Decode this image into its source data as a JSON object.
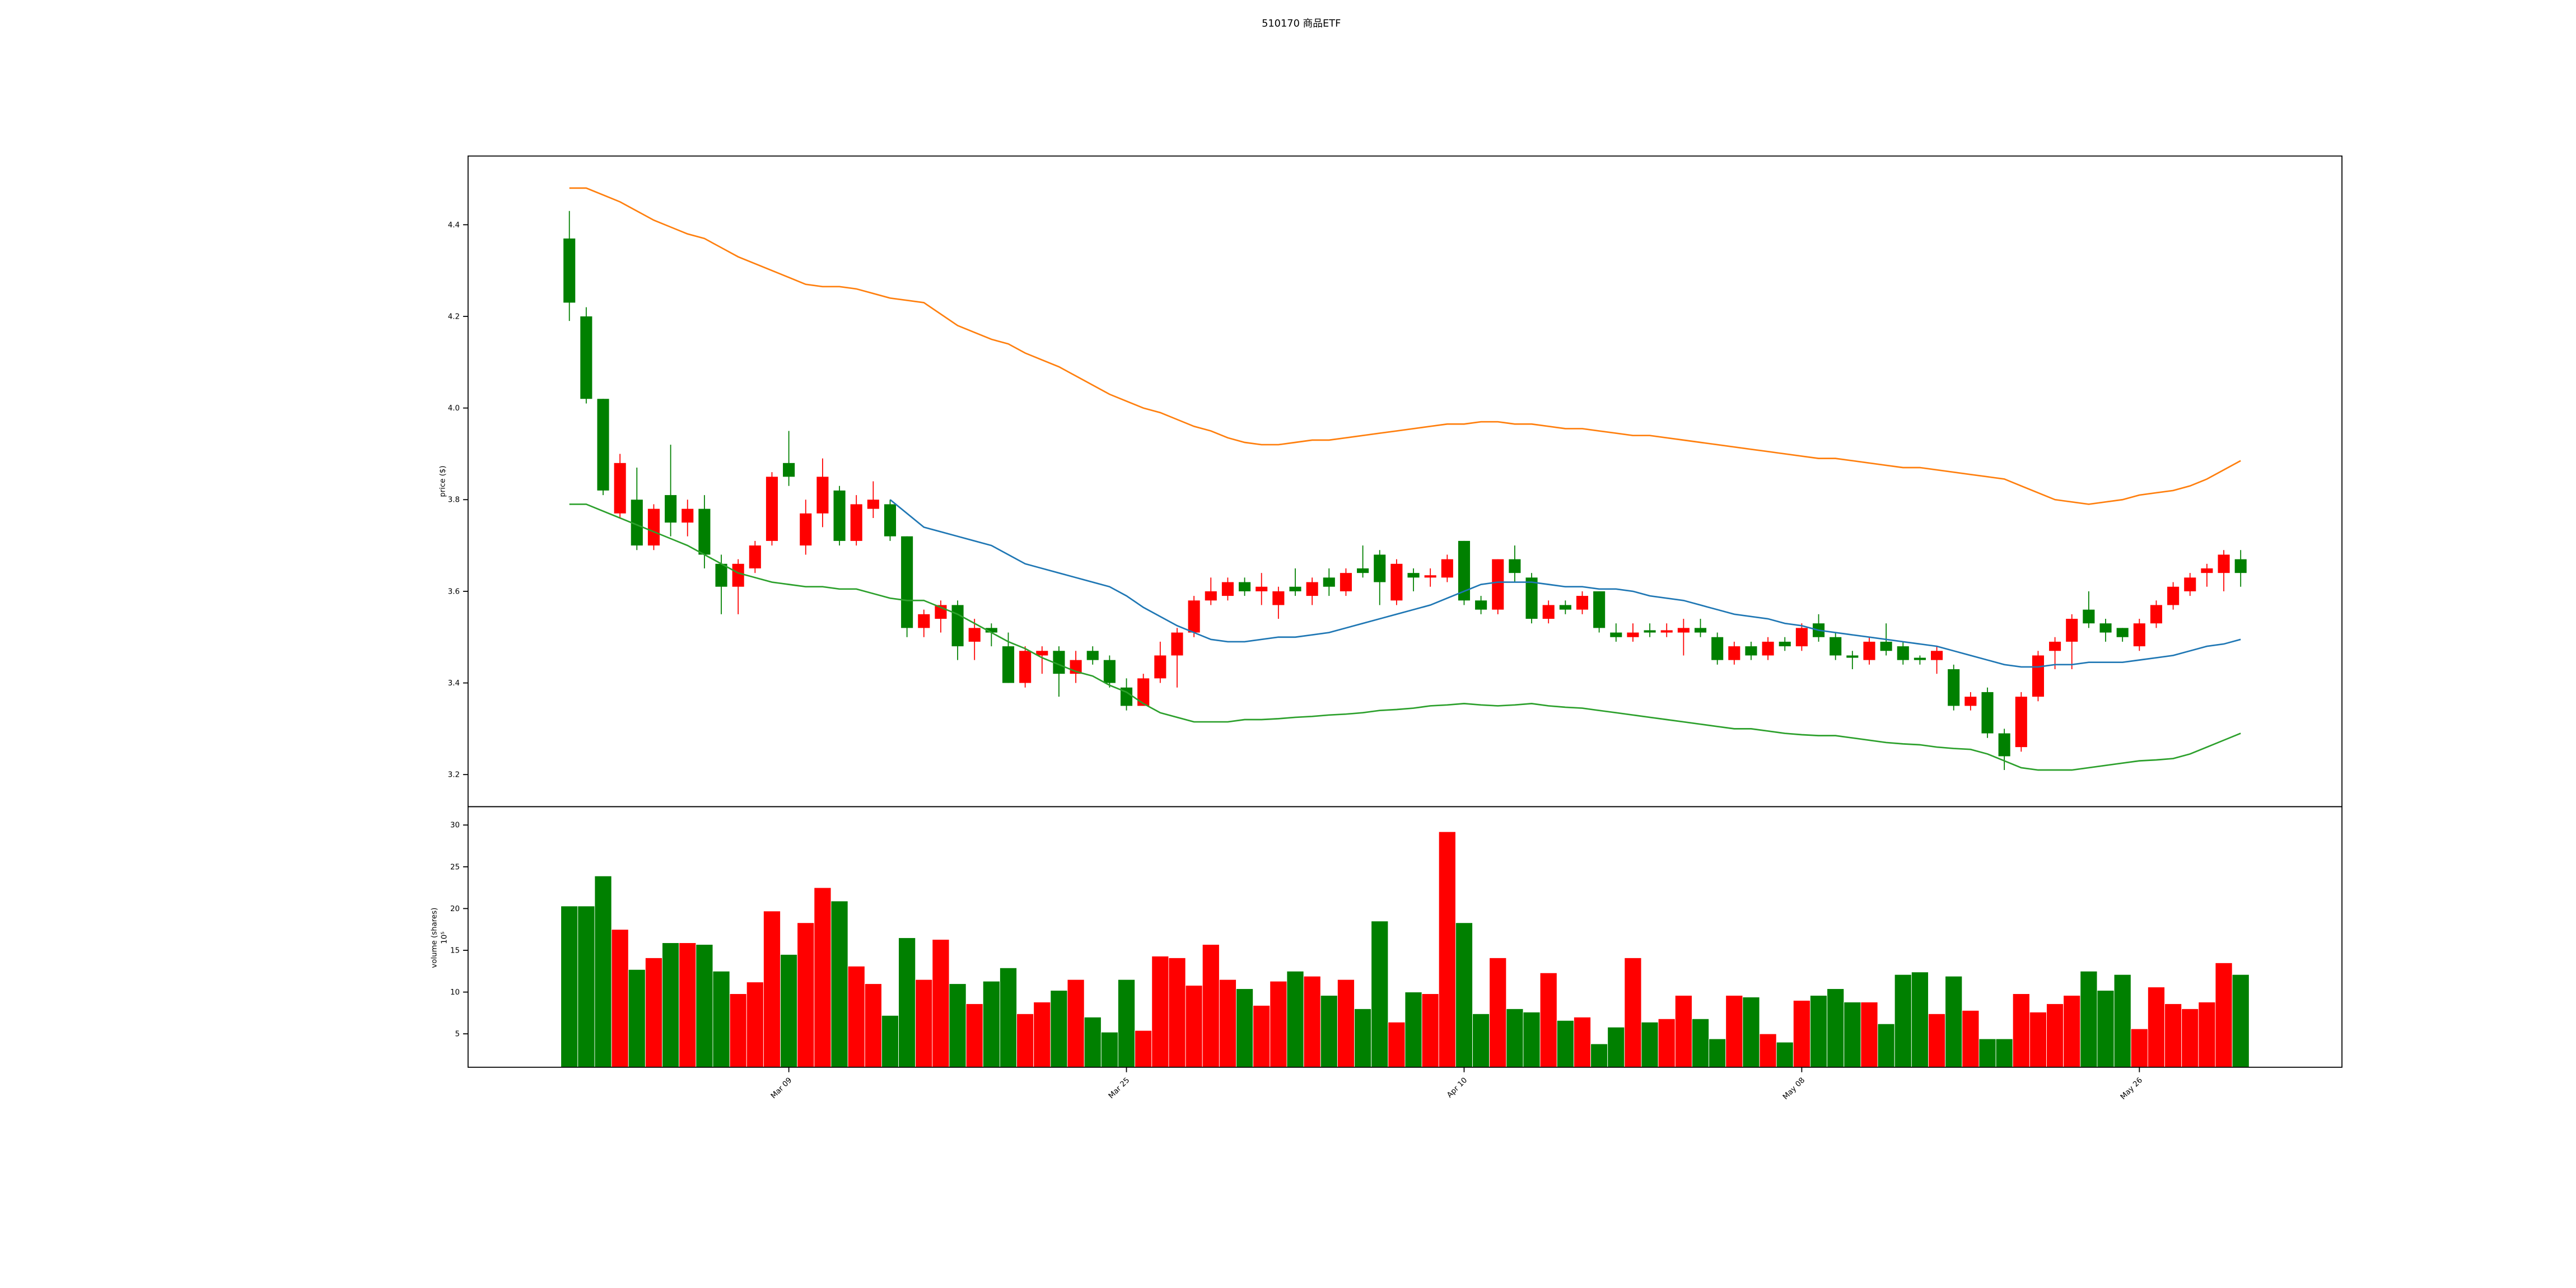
{
  "chart_data": {
    "type": "candlestick",
    "title": "510170  商品ETF",
    "ylabel": "price ($)",
    "volume_ylabel": "volume (shares)",
    "volume_offset": "10⁵",
    "xlim": [
      -6,
      105
    ],
    "xticks": [
      {
        "value": 13,
        "label": "Mar 09"
      },
      {
        "value": 33,
        "label": "Mar 25"
      },
      {
        "value": 53,
        "label": "Apr 10"
      },
      {
        "value": 73,
        "label": "May 08"
      },
      {
        "value": 93,
        "label": "May 26"
      }
    ],
    "ylim": [
      3.13,
      4.55
    ],
    "yticks": [
      3.2,
      3.4,
      3.6,
      3.8,
      {
        "value": 4,
        "label": "4.0"
      },
      4.2,
      4.4
    ],
    "volume_ylim": [
      1,
      32.2
    ],
    "volume_yticks": [
      5,
      10,
      15,
      20,
      25,
      30
    ],
    "up_color": "#ff0000",
    "down_color": "#008000",
    "open": [
      4.37,
      4.2,
      4.02,
      3.77,
      3.8,
      3.7,
      3.81,
      3.75,
      3.78,
      3.66,
      3.61,
      3.65,
      3.71,
      3.88,
      3.7,
      3.77,
      3.82,
      3.71,
      3.78,
      3.79,
      3.72,
      3.52,
      3.54,
      3.57,
      3.49,
      3.52,
      3.48,
      3.4,
      3.46,
      3.47,
      3.42,
      3.47,
      3.45,
      3.39,
      3.35,
      3.41,
      3.46,
      3.51,
      3.58,
      3.59,
      3.62,
      3.6,
      3.57,
      3.61,
      3.59,
      3.63,
      3.6,
      3.65,
      3.68,
      3.58,
      3.64,
      3.63,
      3.63,
      3.71,
      3.58,
      3.56,
      3.67,
      3.63,
      3.54,
      3.57,
      3.56,
      3.6,
      3.51,
      3.5,
      3.515,
      3.51,
      3.51,
      3.52,
      3.5,
      3.45,
      3.48,
      3.46,
      3.49,
      3.48,
      3.53,
      3.5,
      3.46,
      3.45,
      3.49,
      3.48,
      3.455,
      3.45,
      3.43,
      3.35,
      3.38,
      3.29,
      3.26,
      3.37,
      3.47,
      3.49,
      3.56,
      3.53,
      3.52,
      3.48,
      3.53,
      3.57,
      3.6,
      3.64,
      3.64,
      3.67
    ],
    "high": [
      4.43,
      4.22,
      4.02,
      3.9,
      3.87,
      3.79,
      3.92,
      3.8,
      3.81,
      3.68,
      3.67,
      3.71,
      3.86,
      3.95,
      3.8,
      3.89,
      3.83,
      3.81,
      3.84,
      3.8,
      3.72,
      3.56,
      3.58,
      3.58,
      3.54,
      3.53,
      3.51,
      3.48,
      3.48,
      3.48,
      3.47,
      3.48,
      3.46,
      3.41,
      3.42,
      3.49,
      3.52,
      3.59,
      3.63,
      3.63,
      3.63,
      3.64,
      3.61,
      3.65,
      3.63,
      3.65,
      3.65,
      3.7,
      3.69,
      3.67,
      3.65,
      3.65,
      3.68,
      3.71,
      3.59,
      3.67,
      3.7,
      3.64,
      3.58,
      3.58,
      3.6,
      3.6,
      3.53,
      3.53,
      3.53,
      3.53,
      3.54,
      3.54,
      3.51,
      3.49,
      3.49,
      3.5,
      3.5,
      3.53,
      3.55,
      3.51,
      3.47,
      3.5,
      3.53,
      3.49,
      3.46,
      3.48,
      3.44,
      3.38,
      3.39,
      3.3,
      3.38,
      3.47,
      3.5,
      3.55,
      3.6,
      3.54,
      3.52,
      3.54,
      3.58,
      3.62,
      3.64,
      3.66,
      3.69,
      3.69
    ],
    "low": [
      4.19,
      4.01,
      3.81,
      3.76,
      3.69,
      3.69,
      3.72,
      3.72,
      3.65,
      3.55,
      3.55,
      3.64,
      3.7,
      3.83,
      3.68,
      3.74,
      3.7,
      3.7,
      3.76,
      3.71,
      3.5,
      3.5,
      3.51,
      3.45,
      3.45,
      3.48,
      3.4,
      3.39,
      3.42,
      3.37,
      3.4,
      3.44,
      3.39,
      3.34,
      3.35,
      3.4,
      3.39,
      3.5,
      3.57,
      3.58,
      3.59,
      3.57,
      3.54,
      3.59,
      3.57,
      3.59,
      3.59,
      3.63,
      3.57,
      3.57,
      3.6,
      3.61,
      3.62,
      3.57,
      3.55,
      3.55,
      3.62,
      3.53,
      3.53,
      3.55,
      3.55,
      3.51,
      3.49,
      3.49,
      3.5,
      3.5,
      3.46,
      3.5,
      3.44,
      3.44,
      3.45,
      3.45,
      3.47,
      3.47,
      3.49,
      3.45,
      3.43,
      3.44,
      3.46,
      3.44,
      3.44,
      3.42,
      3.34,
      3.34,
      3.28,
      3.21,
      3.25,
      3.36,
      3.43,
      3.43,
      3.52,
      3.49,
      3.49,
      3.47,
      3.52,
      3.56,
      3.59,
      3.61,
      3.6,
      3.61
    ],
    "close": [
      4.23,
      4.02,
      3.82,
      3.88,
      3.7,
      3.78,
      3.75,
      3.78,
      3.68,
      3.61,
      3.66,
      3.7,
      3.85,
      3.85,
      3.77,
      3.85,
      3.71,
      3.79,
      3.8,
      3.72,
      3.52,
      3.55,
      3.57,
      3.48,
      3.52,
      3.51,
      3.4,
      3.47,
      3.47,
      3.42,
      3.45,
      3.45,
      3.4,
      3.35,
      3.41,
      3.46,
      3.51,
      3.58,
      3.6,
      3.62,
      3.6,
      3.61,
      3.6,
      3.6,
      3.62,
      3.61,
      3.64,
      3.64,
      3.62,
      3.66,
      3.63,
      3.635,
      3.67,
      3.58,
      3.56,
      3.67,
      3.64,
      3.54,
      3.57,
      3.56,
      3.59,
      3.52,
      3.5,
      3.51,
      3.51,
      3.515,
      3.52,
      3.51,
      3.45,
      3.48,
      3.46,
      3.49,
      3.48,
      3.52,
      3.5,
      3.46,
      3.455,
      3.49,
      3.47,
      3.45,
      3.45,
      3.47,
      3.35,
      3.37,
      3.29,
      3.24,
      3.37,
      3.46,
      3.49,
      3.54,
      3.53,
      3.51,
      3.5,
      3.53,
      3.57,
      3.61,
      3.63,
      3.65,
      3.68,
      3.64
    ],
    "volume": [
      20.3,
      20.3,
      23.9,
      17.5,
      12.7,
      14.1,
      15.9,
      15.9,
      15.7,
      12.5,
      9.8,
      11.2,
      19.7,
      14.5,
      18.3,
      22.5,
      20.9,
      13.1,
      11.0,
      7.2,
      16.5,
      11.5,
      16.3,
      11.0,
      8.6,
      11.3,
      12.9,
      7.4,
      8.8,
      10.2,
      11.5,
      7.0,
      5.2,
      11.5,
      5.4,
      14.3,
      14.1,
      10.8,
      15.7,
      11.5,
      10.4,
      8.4,
      11.3,
      12.5,
      11.9,
      9.6,
      11.5,
      8.0,
      18.5,
      6.4,
      10.0,
      9.8,
      29.2,
      18.3,
      7.4,
      14.1,
      8.0,
      7.6,
      12.3,
      6.6,
      7.0,
      3.8,
      5.8,
      14.1,
      6.4,
      6.8,
      9.6,
      6.8,
      4.4,
      9.6,
      9.4,
      5.0,
      4.0,
      9.0,
      9.6,
      10.4,
      8.8,
      8.8,
      6.2,
      12.1,
      12.4,
      7.4,
      11.9,
      7.8,
      4.4,
      4.4,
      9.8,
      7.6,
      8.6,
      9.6,
      12.5,
      10.2,
      12.1,
      5.6,
      10.6,
      8.6,
      8.0,
      8.8,
      13.5,
      12.1
    ],
    "series": [
      {
        "color": "#ff7f0e",
        "values": [
          4.48,
          4.48,
          4.465,
          4.45,
          4.43,
          4.41,
          4.395,
          4.38,
          4.37,
          4.35,
          4.33,
          4.315,
          4.3,
          4.285,
          4.27,
          4.265,
          4.265,
          4.26,
          4.25,
          4.24,
          4.235,
          4.23,
          4.205,
          4.18,
          4.165,
          4.15,
          4.14,
          4.12,
          4.105,
          4.09,
          4.07,
          4.05,
          4.03,
          4.015,
          4.0,
          3.99,
          3.975,
          3.96,
          3.95,
          3.935,
          3.925,
          3.92,
          3.92,
          3.925,
          3.93,
          3.93,
          3.935,
          3.94,
          3.945,
          3.95,
          3.955,
          3.96,
          3.965,
          3.965,
          3.97,
          3.97,
          3.965,
          3.965,
          3.96,
          3.955,
          3.955,
          3.95,
          3.945,
          3.94,
          3.94,
          3.935,
          3.93,
          3.925,
          3.92,
          3.915,
          3.91,
          3.905,
          3.9,
          3.895,
          3.89,
          3.89,
          3.885,
          3.88,
          3.875,
          3.87,
          3.87,
          3.865,
          3.86,
          3.855,
          3.85,
          3.845,
          3.83,
          3.815,
          3.8,
          3.795,
          3.79,
          3.795,
          3.8,
          3.81,
          3.815,
          3.82,
          3.83,
          3.845,
          3.865,
          3.885
        ]
      },
      {
        "color": "#1f77b4",
        "values": [
          null,
          null,
          null,
          null,
          null,
          null,
          null,
          null,
          null,
          null,
          null,
          null,
          null,
          null,
          null,
          null,
          null,
          null,
          null,
          3.8,
          3.77,
          3.74,
          3.73,
          3.72,
          3.71,
          3.7,
          3.68,
          3.66,
          3.65,
          3.64,
          3.63,
          3.62,
          3.61,
          3.59,
          3.565,
          3.545,
          3.525,
          3.51,
          3.495,
          3.49,
          3.49,
          3.495,
          3.5,
          3.5,
          3.505,
          3.51,
          3.52,
          3.53,
          3.54,
          3.55,
          3.56,
          3.57,
          3.585,
          3.6,
          3.615,
          3.62,
          3.62,
          3.62,
          3.615,
          3.61,
          3.61,
          3.605,
          3.605,
          3.6,
          3.59,
          3.585,
          3.58,
          3.57,
          3.56,
          3.55,
          3.545,
          3.54,
          3.53,
          3.525,
          3.515,
          3.51,
          3.505,
          3.5,
          3.495,
          3.49,
          3.485,
          3.48,
          3.47,
          3.46,
          3.45,
          3.44,
          3.435,
          3.435,
          3.44,
          3.44,
          3.445,
          3.445,
          3.445,
          3.45,
          3.455,
          3.46,
          3.47,
          3.48,
          3.485,
          3.495
        ]
      },
      {
        "color": "#2ca02c",
        "values": [
          3.79,
          3.79,
          3.775,
          3.76,
          3.745,
          3.73,
          3.715,
          3.7,
          3.68,
          3.66,
          3.64,
          3.63,
          3.62,
          3.615,
          3.61,
          3.61,
          3.605,
          3.605,
          3.595,
          3.585,
          3.58,
          3.58,
          3.565,
          3.55,
          3.53,
          3.51,
          3.49,
          3.475,
          3.455,
          3.44,
          3.425,
          3.415,
          3.395,
          3.38,
          3.355,
          3.335,
          3.325,
          3.315,
          3.315,
          3.315,
          3.32,
          3.32,
          3.322,
          3.325,
          3.327,
          3.33,
          3.332,
          3.335,
          3.34,
          3.342,
          3.345,
          3.35,
          3.352,
          3.355,
          3.352,
          3.35,
          3.352,
          3.355,
          3.35,
          3.347,
          3.345,
          3.34,
          3.335,
          3.33,
          3.325,
          3.32,
          3.315,
          3.31,
          3.305,
          3.3,
          3.3,
          3.295,
          3.29,
          3.287,
          3.285,
          3.285,
          3.28,
          3.275,
          3.27,
          3.267,
          3.265,
          3.26,
          3.257,
          3.255,
          3.245,
          3.23,
          3.215,
          3.21,
          3.21,
          3.21,
          3.215,
          3.22,
          3.225,
          3.23,
          3.232,
          3.235,
          3.245,
          3.26,
          3.275,
          3.29
        ]
      }
    ]
  }
}
